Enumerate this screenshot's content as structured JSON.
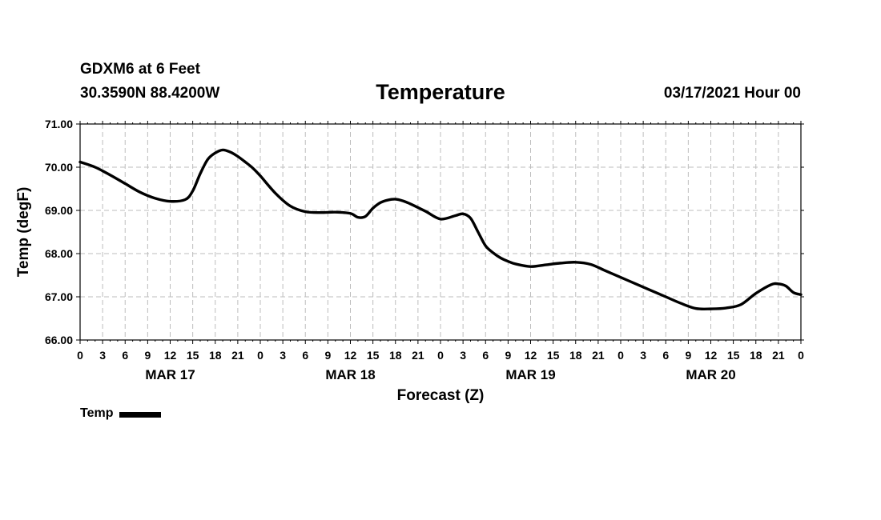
{
  "header": {
    "station": "GDXM6 at 6 Feet",
    "coordinates": "30.3590N 88.4200W",
    "datetime": "03/17/2021 Hour 00"
  },
  "legend": {
    "label": "Temp",
    "icon": "line-swatch"
  },
  "colors": {
    "line": "#000000",
    "grid": "#bdbdbd",
    "axis": "#000000"
  },
  "chart_data": {
    "type": "line",
    "title": "Temperature",
    "xlabel": "Forecast (Z)",
    "ylabel": "Temp (degF)",
    "ylim": [
      66.0,
      71.0
    ],
    "yticks": [
      "66.00",
      "67.00",
      "68.00",
      "69.00",
      "70.00",
      "71.00"
    ],
    "xlim": [
      0,
      96
    ],
    "x_tick_step_hours": 3,
    "x_tick_labels": [
      "0",
      "3",
      "6",
      "9",
      "12",
      "15",
      "18",
      "21",
      "0",
      "3",
      "6",
      "9",
      "12",
      "15",
      "18",
      "21",
      "0",
      "3",
      "6",
      "9",
      "12",
      "15",
      "18",
      "21",
      "0",
      "3",
      "6",
      "9",
      "12",
      "15",
      "18",
      "21",
      "0"
    ],
    "date_labels": [
      {
        "hour": 12,
        "label": "MAR 17"
      },
      {
        "hour": 36,
        "label": "MAR 18"
      },
      {
        "hour": 60,
        "label": "MAR 19"
      },
      {
        "hour": 84,
        "label": "MAR 20"
      }
    ],
    "grid": true,
    "series": [
      {
        "name": "Temp",
        "x": [
          0,
          2,
          4,
          6,
          8,
          10,
          12,
          14,
          15,
          16,
          17,
          18,
          19,
          20,
          21,
          22,
          23,
          24,
          26,
          28,
          30,
          32,
          34,
          36,
          37,
          38,
          39,
          40,
          41,
          42,
          43,
          44,
          46,
          48,
          50,
          51,
          52,
          53,
          54,
          55,
          56,
          57,
          58,
          60,
          62,
          64,
          66,
          68,
          70,
          72,
          74,
          76,
          78,
          80,
          82,
          84,
          86,
          88,
          90,
          92,
          93,
          94,
          95,
          96
        ],
        "values": [
          70.12,
          70.0,
          69.82,
          69.62,
          69.42,
          69.28,
          69.21,
          69.25,
          69.45,
          69.85,
          70.18,
          70.33,
          70.4,
          70.35,
          70.25,
          70.12,
          69.98,
          69.8,
          69.4,
          69.1,
          68.97,
          68.95,
          68.96,
          68.93,
          68.84,
          68.86,
          69.05,
          69.18,
          69.24,
          69.26,
          69.22,
          69.15,
          68.98,
          68.8,
          68.88,
          68.92,
          68.82,
          68.5,
          68.18,
          68.02,
          67.9,
          67.82,
          67.76,
          67.7,
          67.74,
          67.78,
          67.8,
          67.75,
          67.6,
          67.45,
          67.3,
          67.15,
          67.0,
          66.85,
          66.73,
          66.72,
          66.74,
          66.82,
          67.08,
          67.28,
          67.3,
          67.25,
          67.1,
          67.05
        ]
      }
    ]
  }
}
